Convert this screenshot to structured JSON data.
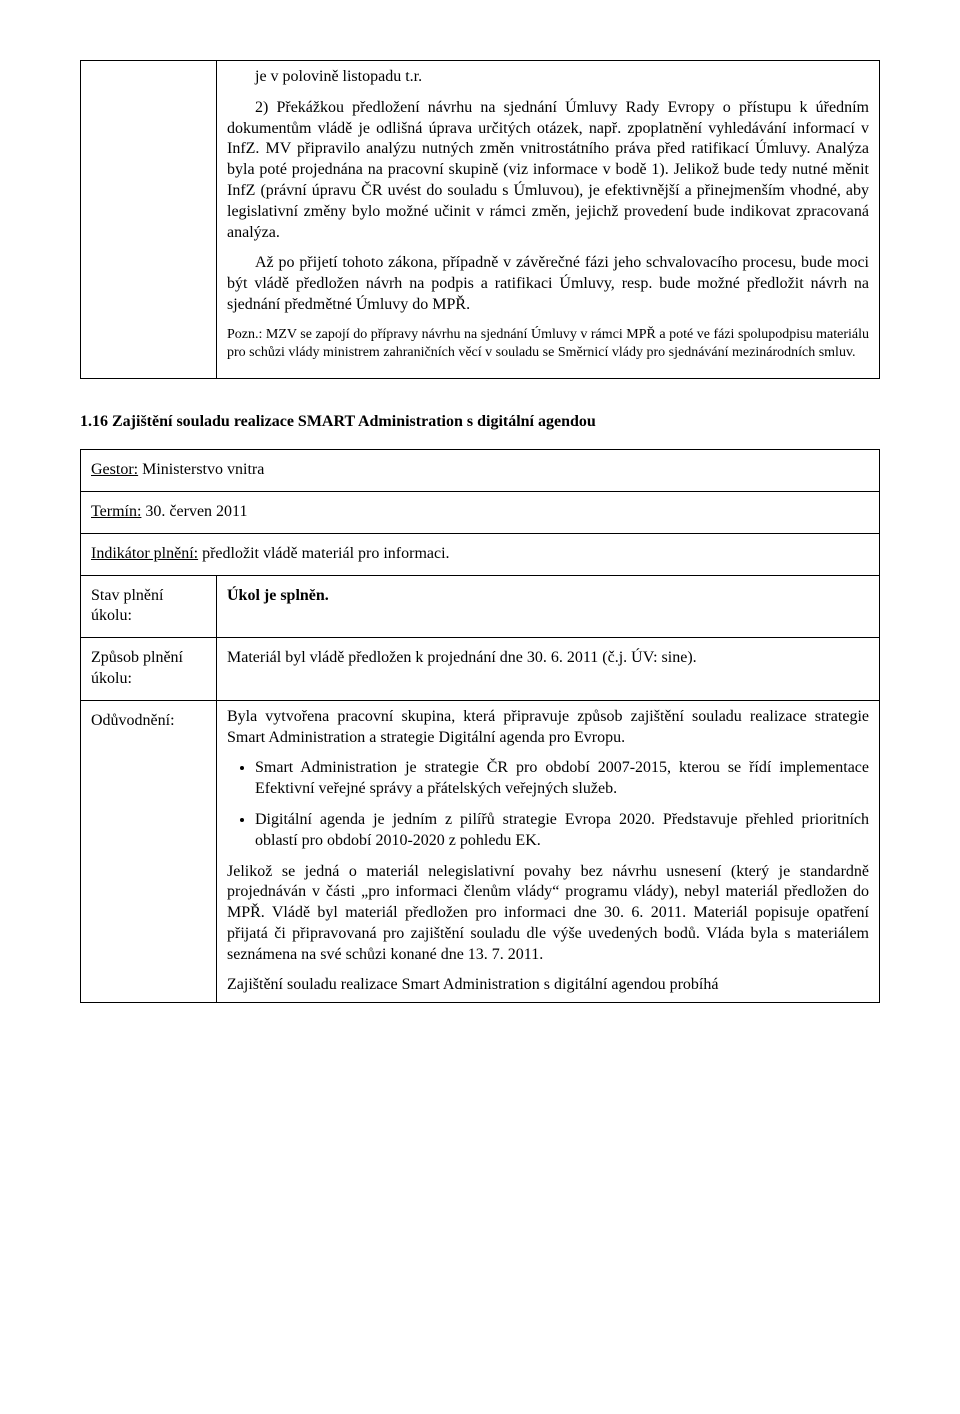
{
  "upper_box": {
    "p1": "je v polovině listopadu t.r.",
    "p2": "2) Překážkou předložení návrhu na sjednání Úmluvy Rady Evropy o přístupu k úředním dokumentům vládě je odlišná úprava určitých otázek, např. zpoplatnění vyhledávání informací v InfZ. MV připravilo analýzu nutných změn vnitrostátního práva před ratifikací Úmluvy. Analýza byla poté projednána na pracovní skupině (viz informace v bodě 1). Jelikož bude tedy nutné měnit InfZ (právní úpravu ČR uvést do souladu s Úmluvou), je efektivnější a přinejmenším vhodné, aby legislativní změny bylo možné učinit v rámci změn, jejichž provedení bude indikovat zpracovaná analýza.",
    "p3": "Až po přijetí tohoto zákona, případně v závěrečné fázi jeho schvalovacího procesu, bude moci být vládě předložen návrh na podpis a ratifikaci Úmluvy, resp. bude možné předložit návrh na sjednání předmětné Úmluvy do MPŘ.",
    "note": "Pozn.: MZV se zapojí do přípravy návrhu na sjednání Úmluvy v rámci MPŘ a poté ve fázi spolupodpisu materiálu pro schůzi vlády ministrem zahraničních věcí v souladu se Směrnicí vlády pro sjednávání mezinárodních smluv."
  },
  "section_heading": "1.16 Zajištění souladu realizace SMART Administration s digitální agendou",
  "row_gestor": {
    "label": "Gestor:",
    "value": " Ministerstvo vnitra"
  },
  "row_termin": {
    "label": "Termín:",
    "value": " 30. červen 2011"
  },
  "row_indikator": {
    "label": "Indikátor plnění:",
    "value": " předložit vládě materiál pro informaci."
  },
  "row_stav": {
    "label": "Stav plnění úkolu:",
    "value": "Úkol je splněn."
  },
  "row_zpusob": {
    "label": "Způsob plnění úkolu:",
    "value": "Materiál byl vládě předložen k projednání dne 30. 6. 2011 (č.j. ÚV: sine)."
  },
  "row_oduv": {
    "label": "Odůvodnění:",
    "p1": "Byla vytvořena pracovní skupina, která připravuje způsob zajištění souladu realizace strategie Smart Administration a strategie Digitální agenda pro Evropu.",
    "b1": "Smart Administration je strategie ČR pro období 2007-2015, kterou se řídí implementace Efektivní veřejné správy a přátelských veřejných služeb.",
    "b2": "Digitální agenda je jedním z pilířů strategie Evropa 2020. Představuje přehled prioritních oblastí pro období 2010-2020 z pohledu EK.",
    "p2": "Jelikož se jedná o materiál nelegislativní povahy bez návrhu usnesení (který je standardně projednáván v části „pro informaci členům vlády“ programu vlády), nebyl materiál předložen do MPŘ. Vládě byl materiál předložen pro informaci dne 30. 6. 2011. Materiál popisuje opatření přijatá či připravovaná pro zajištění souladu dle výše uvedených bodů. Vláda byla s materiálem seznámena na své schůzi konané dne 13. 7. 2011.",
    "p3": "Zajištění souladu realizace Smart Administration s digitální agendou probíhá"
  }
}
